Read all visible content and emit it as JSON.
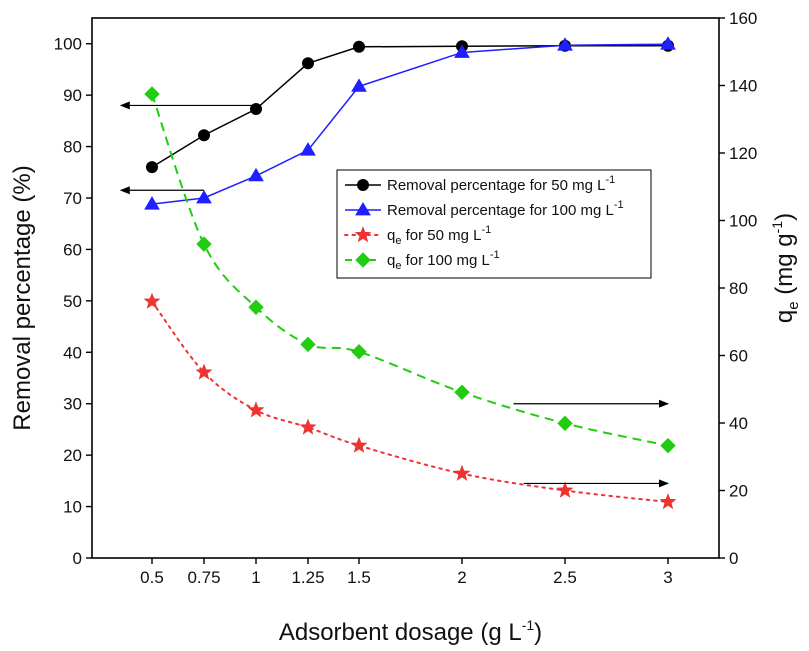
{
  "chart_data": {
    "type": "line",
    "x": [
      0.5,
      0.75,
      1,
      1.25,
      1.5,
      2,
      2.5,
      3
    ],
    "x_tick_labels": [
      "0.5",
      "0.75",
      "1",
      "1.25",
      "1.5",
      "2",
      "2.5",
      "3"
    ],
    "xlabel": {
      "main": "Adsorbent dosage (g L",
      "sup": "-1",
      "tail": ")"
    },
    "ylabel_left": "Removal percentage (%)",
    "ylabel_right": {
      "main": "q",
      "sub": "e",
      "mid": " (mg g",
      "sup": "-1",
      "tail": ")"
    },
    "ylim_left": [
      0,
      105
    ],
    "ylim_right": [
      0,
      160
    ],
    "yticks_left": [
      "0",
      "10",
      "20",
      "30",
      "40",
      "50",
      "60",
      "70",
      "80",
      "90",
      "100"
    ],
    "yticks_right": [
      "0",
      "20",
      "40",
      "60",
      "80",
      "100",
      "120",
      "140",
      "160"
    ],
    "legend_position": "center-right",
    "series": [
      {
        "legend_main": "Removal percentage for 50 mg L",
        "legend_sub": "",
        "legend_tail": "",
        "legend_sup": "-1",
        "axis": "left",
        "color": "#000000",
        "marker": "circle",
        "line_style": "solid",
        "values": [
          76,
          82.2,
          87.3,
          96.2,
          99.4,
          99.5,
          99.6,
          99.6
        ]
      },
      {
        "legend_main": "Removal percentage for 100 mg L",
        "legend_sub": "",
        "legend_tail": "",
        "legend_sup": "-1",
        "axis": "left",
        "color": "#1f1fff",
        "marker": "triangle",
        "line_style": "solid",
        "values": [
          68.8,
          70,
          74.3,
          79.3,
          91.7,
          98.3,
          99.7,
          99.9
        ]
      },
      {
        "legend_main": "q",
        "legend_sub": "e",
        "legend_tail": " for 50 mg L",
        "legend_sup": "-1",
        "axis": "right",
        "color": "#ee3333",
        "marker": "star",
        "line_style": "dotted",
        "values": [
          76,
          55,
          43.8,
          38.7,
          33.3,
          25,
          20,
          16.6
        ]
      },
      {
        "legend_main": "q",
        "legend_sub": "e",
        "legend_tail": " for 100 mg L",
        "legend_sup": "-1",
        "axis": "right",
        "color": "#22cc11",
        "marker": "diamond",
        "line_style": "dashed",
        "values": [
          137.5,
          93,
          74.3,
          63.3,
          61.1,
          49.1,
          39.9,
          33.3
        ]
      }
    ],
    "arrows": [
      {
        "points_to": "left",
        "x_from": 1,
        "x_to": 0.35,
        "y": 88,
        "axis": "left"
      },
      {
        "points_to": "left",
        "x_from": 0.75,
        "x_to": 0.35,
        "y": 71.5,
        "axis": "left"
      },
      {
        "points_to": "right",
        "x_from": 2.25,
        "x_to": 3,
        "y": 30,
        "axis": "left"
      },
      {
        "points_to": "right",
        "x_from": 2.3,
        "x_to": 3,
        "y": 14.5,
        "axis": "left"
      }
    ]
  }
}
